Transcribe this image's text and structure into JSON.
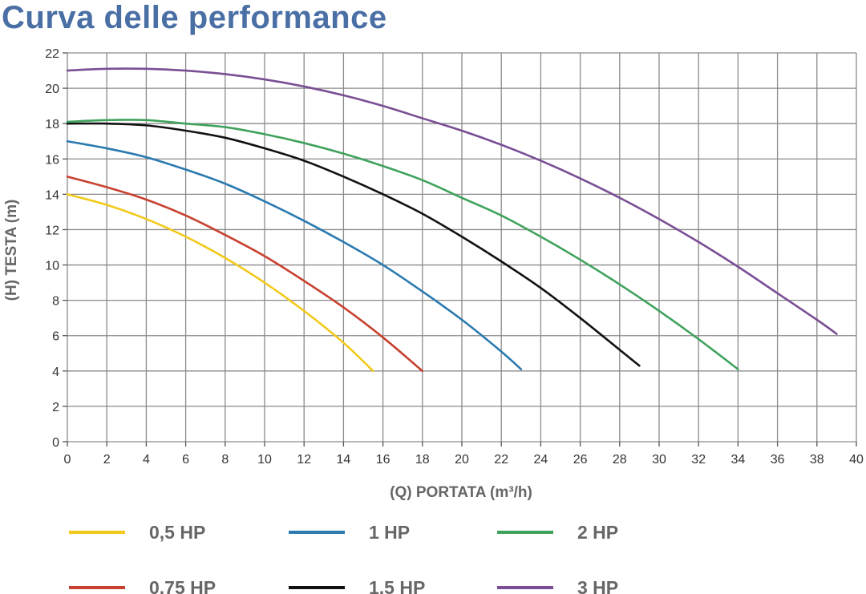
{
  "title": "Curva delle performance",
  "chart_data": {
    "type": "line",
    "xlabel": "(Q) PORTATA (m³/h)",
    "ylabel": "(H) TESTA (m)",
    "xlim": [
      0,
      40
    ],
    "ylim": [
      0,
      22
    ],
    "x_ticks": [
      0,
      2,
      4,
      6,
      8,
      10,
      12,
      14,
      16,
      18,
      20,
      22,
      24,
      26,
      28,
      30,
      32,
      34,
      36,
      38,
      40
    ],
    "y_ticks": [
      0,
      2,
      4,
      6,
      8,
      10,
      12,
      14,
      16,
      18,
      20,
      22
    ],
    "grid": true,
    "legend_position": "bottom",
    "series": [
      {
        "name": "0,5 HP",
        "color": "#f2c91a",
        "points": [
          [
            0,
            14.0
          ],
          [
            2,
            13.4
          ],
          [
            4,
            12.6
          ],
          [
            6,
            11.6
          ],
          [
            8,
            10.4
          ],
          [
            10,
            9.0
          ],
          [
            12,
            7.4
          ],
          [
            14,
            5.6
          ],
          [
            15.5,
            4.0
          ]
        ]
      },
      {
        "name": "0,75 HP",
        "color": "#c8412f",
        "points": [
          [
            0,
            15.0
          ],
          [
            2,
            14.4
          ],
          [
            4,
            13.7
          ],
          [
            6,
            12.8
          ],
          [
            8,
            11.7
          ],
          [
            10,
            10.5
          ],
          [
            12,
            9.1
          ],
          [
            14,
            7.6
          ],
          [
            16,
            5.9
          ],
          [
            18,
            4.0
          ]
        ]
      },
      {
        "name": "1 HP",
        "color": "#2a7ab0",
        "points": [
          [
            0,
            17.0
          ],
          [
            2,
            16.6
          ],
          [
            4,
            16.1
          ],
          [
            6,
            15.4
          ],
          [
            8,
            14.6
          ],
          [
            10,
            13.6
          ],
          [
            12,
            12.5
          ],
          [
            14,
            11.3
          ],
          [
            16,
            10.0
          ],
          [
            18,
            8.5
          ],
          [
            20,
            6.9
          ],
          [
            22,
            5.1
          ],
          [
            23,
            4.1
          ]
        ]
      },
      {
        "name": "1,5 HP",
        "color": "#111111",
        "points": [
          [
            0,
            18.0
          ],
          [
            2,
            18.0
          ],
          [
            4,
            17.9
          ],
          [
            6,
            17.6
          ],
          [
            8,
            17.2
          ],
          [
            10,
            16.6
          ],
          [
            12,
            15.9
          ],
          [
            14,
            15.0
          ],
          [
            16,
            14.0
          ],
          [
            18,
            12.9
          ],
          [
            20,
            11.6
          ],
          [
            22,
            10.2
          ],
          [
            24,
            8.7
          ],
          [
            26,
            7.0
          ],
          [
            28,
            5.2
          ],
          [
            29,
            4.3
          ]
        ]
      },
      {
        "name": "2 HP",
        "color": "#3fa25c",
        "points": [
          [
            0,
            18.1
          ],
          [
            2,
            18.2
          ],
          [
            4,
            18.2
          ],
          [
            6,
            18.0
          ],
          [
            8,
            17.8
          ],
          [
            10,
            17.4
          ],
          [
            12,
            16.9
          ],
          [
            14,
            16.3
          ],
          [
            16,
            15.6
          ],
          [
            18,
            14.8
          ],
          [
            20,
            13.8
          ],
          [
            22,
            12.8
          ],
          [
            24,
            11.6
          ],
          [
            26,
            10.3
          ],
          [
            28,
            8.9
          ],
          [
            30,
            7.4
          ],
          [
            32,
            5.8
          ],
          [
            34,
            4.1
          ]
        ]
      },
      {
        "name": "3 HP",
        "color": "#7a4e94",
        "points": [
          [
            0,
            21.0
          ],
          [
            2,
            21.1
          ],
          [
            4,
            21.1
          ],
          [
            6,
            21.0
          ],
          [
            8,
            20.8
          ],
          [
            10,
            20.5
          ],
          [
            12,
            20.1
          ],
          [
            14,
            19.6
          ],
          [
            16,
            19.0
          ],
          [
            18,
            18.3
          ],
          [
            20,
            17.6
          ],
          [
            22,
            16.8
          ],
          [
            24,
            15.9
          ],
          [
            26,
            14.9
          ],
          [
            28,
            13.8
          ],
          [
            30,
            12.6
          ],
          [
            32,
            11.3
          ],
          [
            34,
            9.9
          ],
          [
            36,
            8.4
          ],
          [
            38,
            6.9
          ],
          [
            39,
            6.1
          ]
        ]
      }
    ]
  }
}
